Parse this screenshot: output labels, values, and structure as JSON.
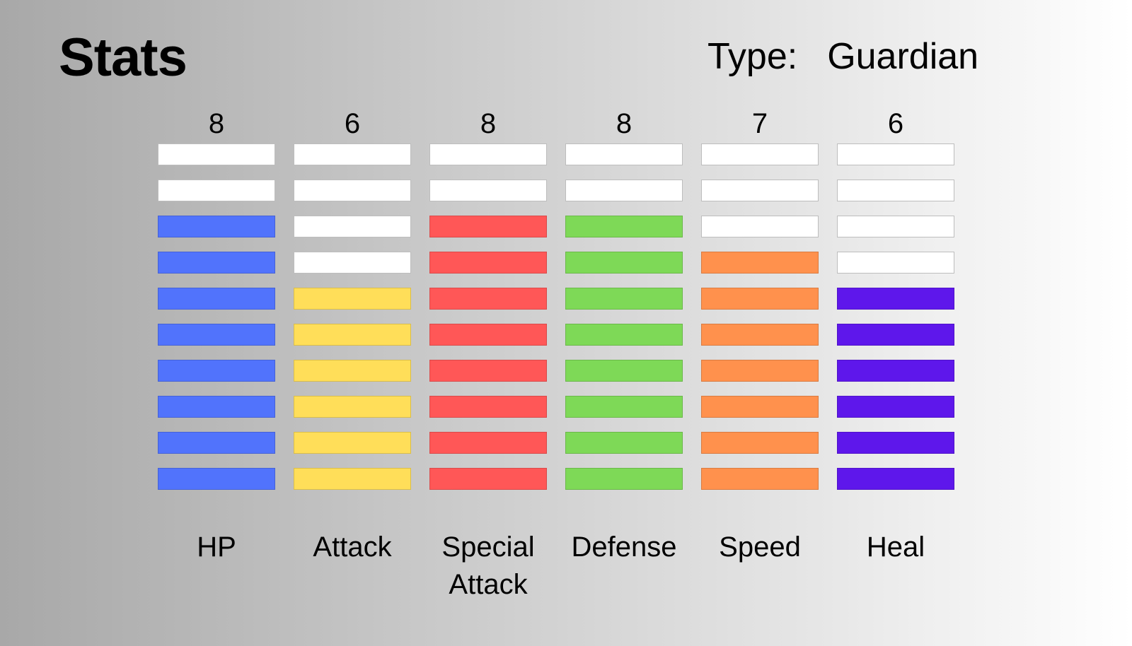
{
  "header": {
    "title": "Stats",
    "type_label": "Type:",
    "type_value": "Guardian"
  },
  "chart_data": {
    "type": "bar",
    "max_segments": 10,
    "categories": [
      "HP",
      "Attack",
      "Special Attack",
      "Defense",
      "Speed",
      "Heal"
    ],
    "display_labels": [
      "HP",
      "Attack",
      "Special\nAttack",
      "Defense",
      "Speed",
      "Heal"
    ],
    "values": [
      8,
      6,
      8,
      8,
      7,
      6
    ],
    "colors": [
      "#5173fc",
      "#ffde59",
      "#ff5757",
      "#7ed957",
      "#ff914d",
      "#5e17eb"
    ],
    "empty_color": "#ffffff"
  }
}
